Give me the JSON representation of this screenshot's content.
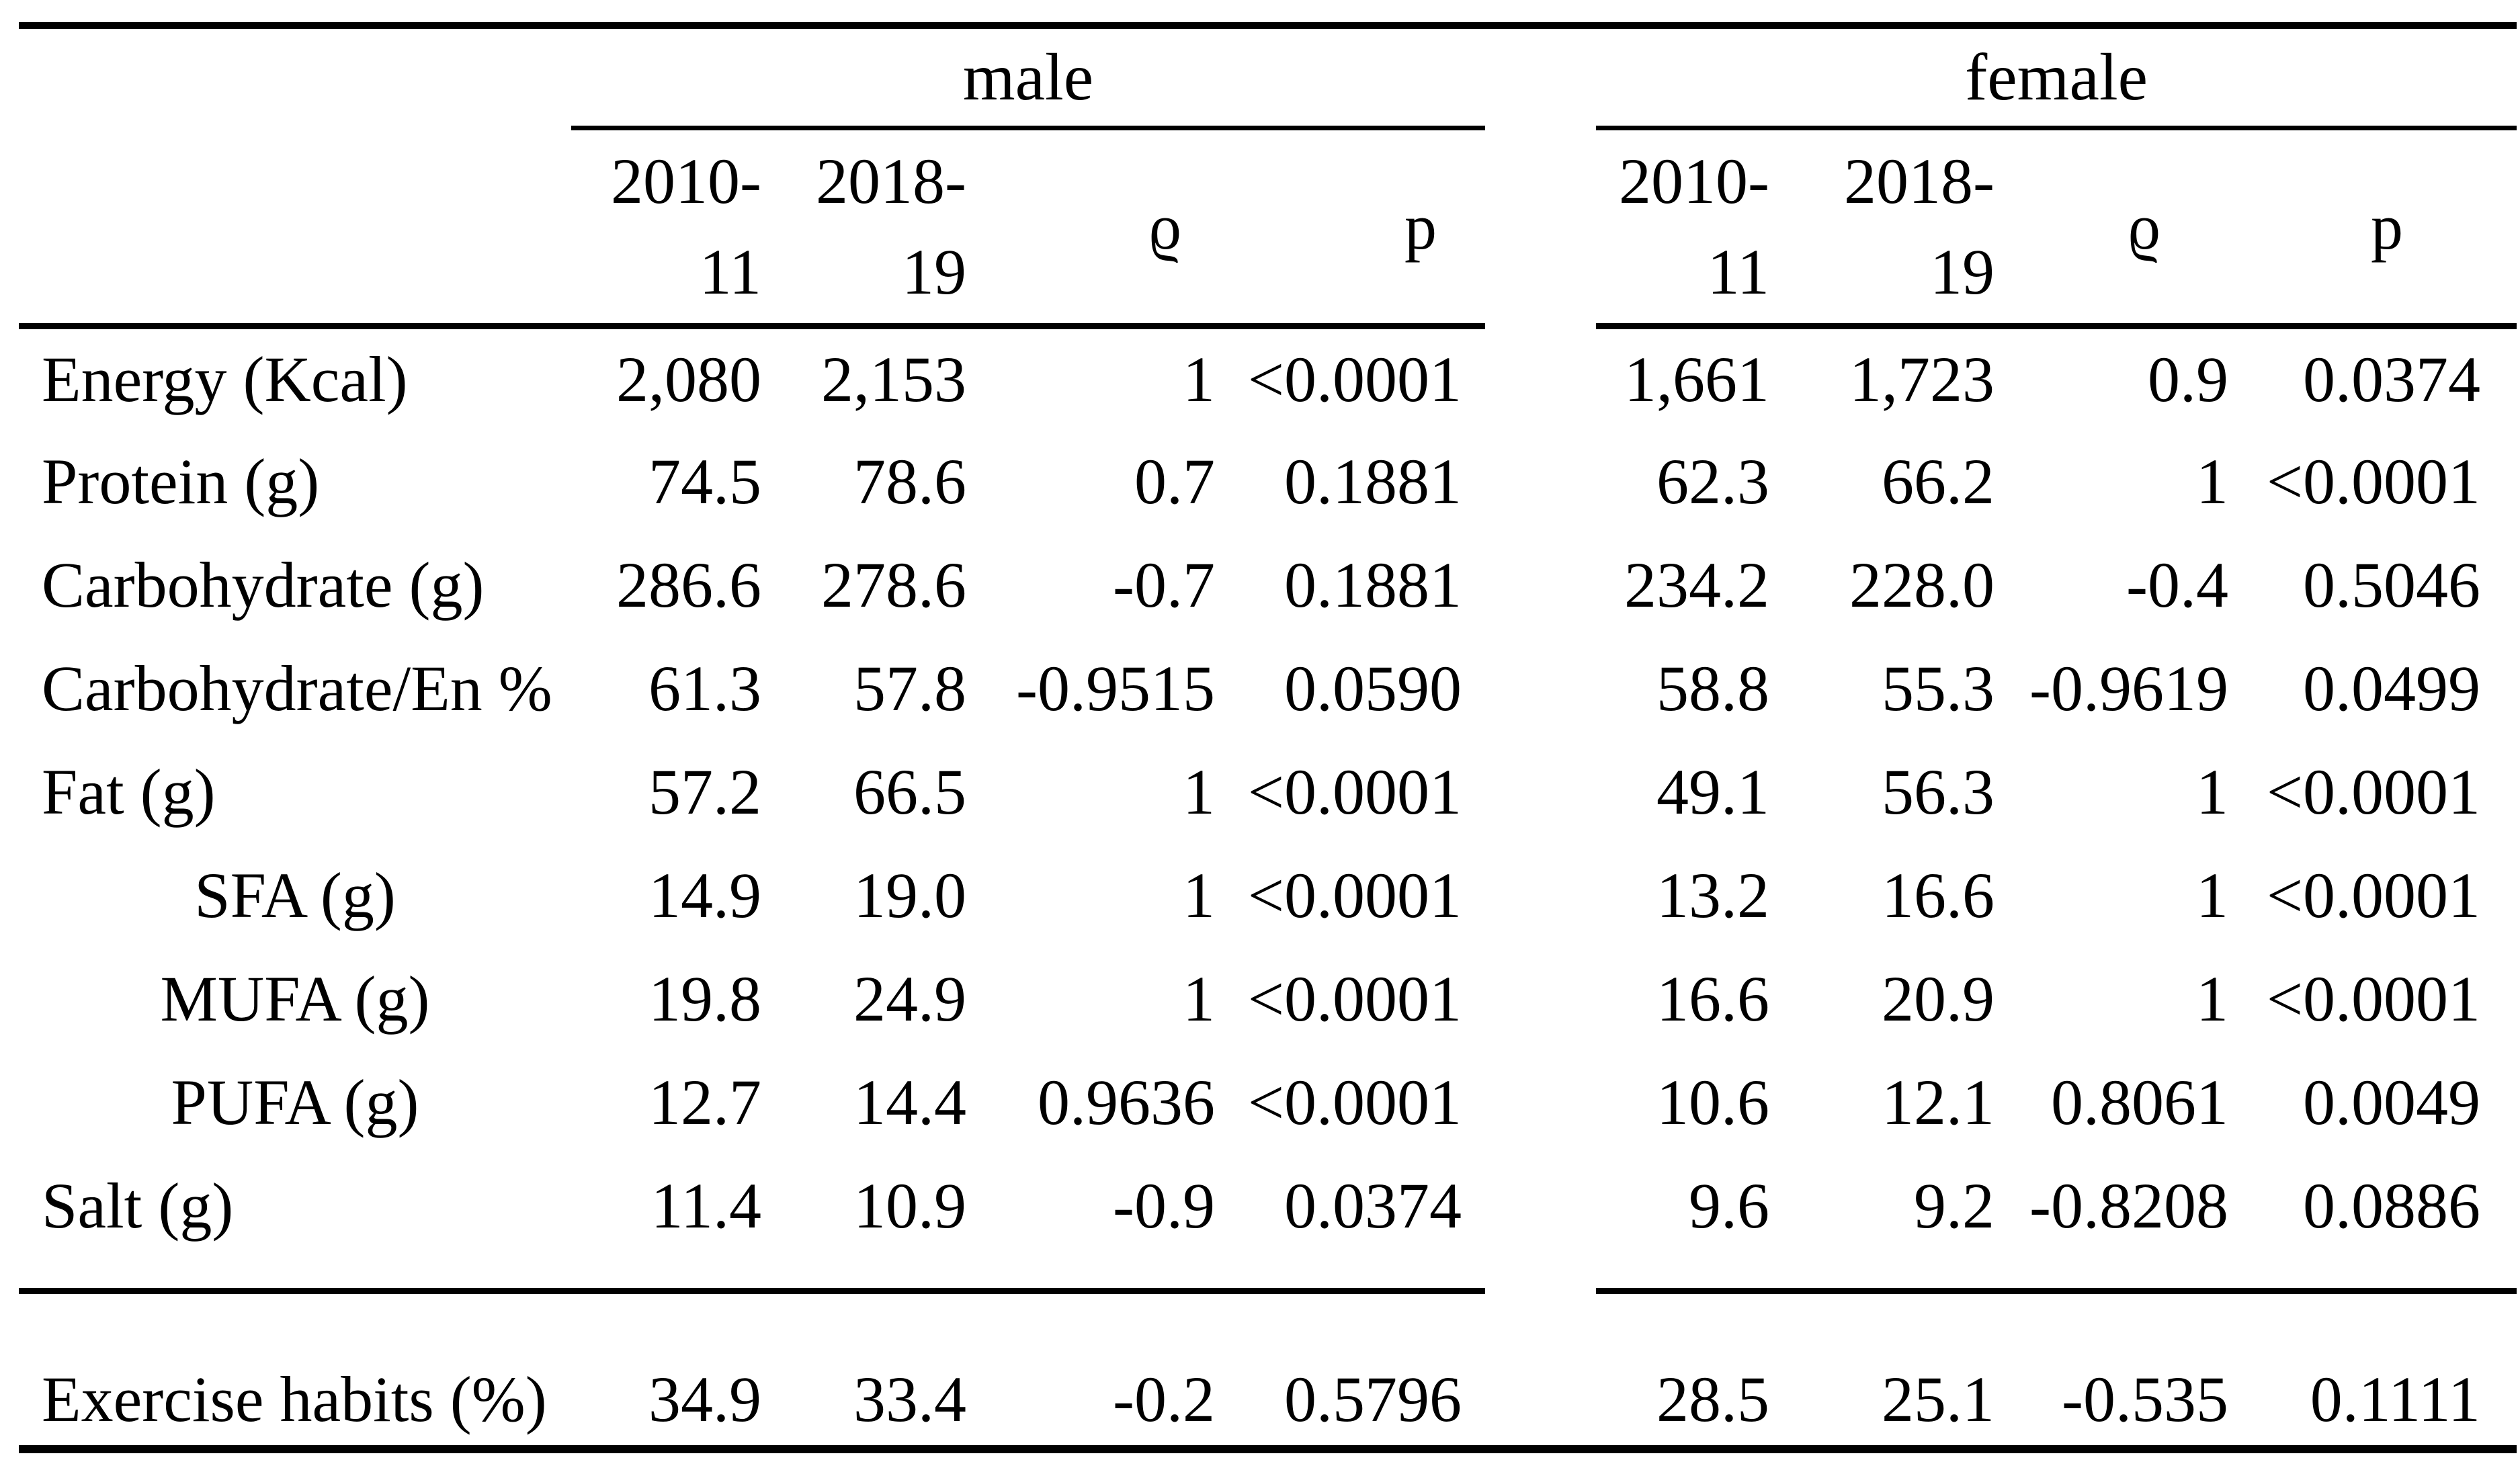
{
  "meta": {
    "background_color": "#ffffff",
    "text_color": "#000000",
    "rule_color": "#000000"
  },
  "table": {
    "group_headers": {
      "male": "male",
      "female": "female"
    },
    "subheaders": {
      "period1": "2010-\n11",
      "period2": "2018-\n19",
      "rho": "ϱ",
      "p": "p"
    },
    "rows": [
      {
        "label": "Energy (Kcal)",
        "indent": false,
        "male": [
          "2,080",
          "2,153",
          "1",
          "<0.0001"
        ],
        "female": [
          "1,661",
          "1,723",
          "0.9",
          "0.0374"
        ]
      },
      {
        "label": "Protein (g)",
        "indent": false,
        "male": [
          "74.5",
          "78.6",
          "0.7",
          "0.1881"
        ],
        "female": [
          "62.3",
          "66.2",
          "1",
          "<0.0001"
        ]
      },
      {
        "label": "Carbohydrate (g)",
        "indent": false,
        "male": [
          "286.6",
          "278.6",
          "-0.7",
          "0.1881"
        ],
        "female": [
          "234.2",
          "228.0",
          "-0.4",
          "0.5046"
        ]
      },
      {
        "label": "Carbohydrate/En %",
        "indent": false,
        "male": [
          "61.3",
          "57.8",
          "-0.9515",
          "0.0590"
        ],
        "female": [
          "58.8",
          "55.3",
          "-0.9619",
          "0.0499"
        ]
      },
      {
        "label": "Fat (g)",
        "indent": false,
        "male": [
          "57.2",
          "66.5",
          "1",
          "<0.0001"
        ],
        "female": [
          "49.1",
          "56.3",
          "1",
          "<0.0001"
        ]
      },
      {
        "label": "SFA (g)",
        "indent": true,
        "male": [
          "14.9",
          "19.0",
          "1",
          "<0.0001"
        ],
        "female": [
          "13.2",
          "16.6",
          "1",
          "<0.0001"
        ]
      },
      {
        "label": "MUFA (g)",
        "indent": true,
        "male": [
          "19.8",
          "24.9",
          "1",
          "<0.0001"
        ],
        "female": [
          "16.6",
          "20.9",
          "1",
          "<0.0001"
        ]
      },
      {
        "label": "PUFA (g)",
        "indent": true,
        "male": [
          "12.7",
          "14.4",
          "0.9636",
          "<0.0001"
        ],
        "female": [
          "10.6",
          "12.1",
          "0.8061",
          "0.0049"
        ]
      },
      {
        "label": "Salt (g)",
        "indent": false,
        "male": [
          "11.4",
          "10.9",
          "-0.9",
          "0.0374"
        ],
        "female": [
          "9.6",
          "9.2",
          "-0.8208",
          "0.0886"
        ]
      }
    ],
    "footer_rows": [
      {
        "label": "Exercise habits (%)",
        "indent": false,
        "male": [
          "34.9",
          "33.4",
          "-0.2",
          "0.5796"
        ],
        "female": [
          "28.5",
          "25.1",
          "-0.535",
          "0.1111"
        ]
      }
    ]
  }
}
